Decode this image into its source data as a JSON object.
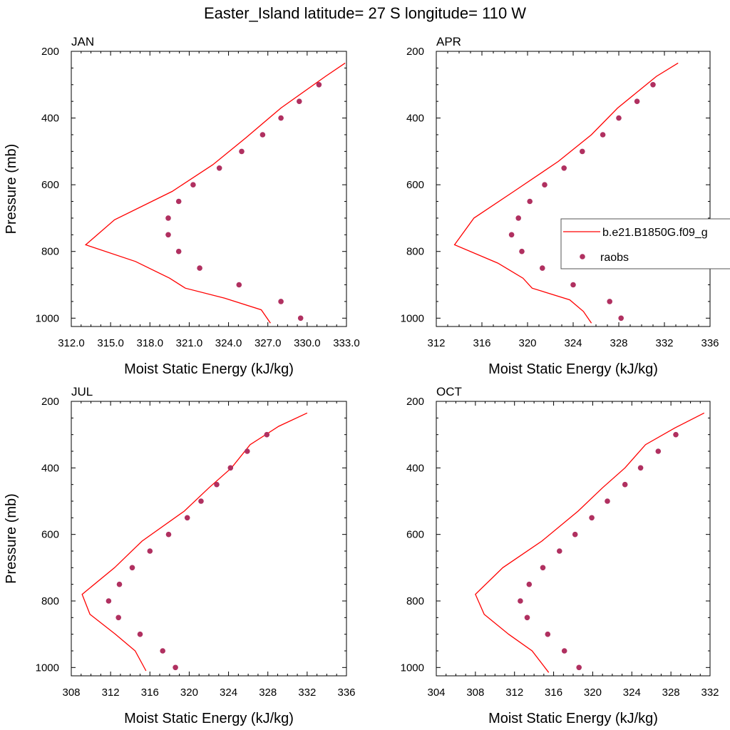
{
  "figure_title": "Easter_Island  latitude= 27 S longitude= 110 W",
  "legend": {
    "model_label": "b.e21.B1850G.f09_g",
    "obs_label": "raobs"
  },
  "colors": {
    "model_line": "#ff0000",
    "obs_marker": "#b03060"
  },
  "chart_data": [
    {
      "type": "line",
      "panel_label": "JAN",
      "xlabel": "Moist Static Energy (kJ/kg)",
      "ylabel": "Pressure (mb)",
      "xlim": [
        312,
        333
      ],
      "ylim": [
        1025,
        200
      ],
      "xticks": [
        312,
        315,
        318,
        321,
        324,
        327,
        330,
        333
      ],
      "xtick_labels": [
        "312.0",
        "315.0",
        "318.0",
        "321.0",
        "324.0",
        "327.0",
        "330.0",
        "333.0"
      ],
      "yticks": [
        200,
        400,
        600,
        800,
        1000
      ],
      "ytick_labels": [
        "200",
        "400",
        "600",
        "800",
        "1000"
      ],
      "series": [
        {
          "name": "b.e21.B1850G.f09_g",
          "kind": "line",
          "x": [
            332.9,
            331.4,
            328.0,
            325.3,
            322.8,
            319.7,
            315.3,
            313.1,
            316.9,
            319.5,
            320.7,
            323.7,
            326.5,
            327.2
          ],
          "y": [
            235,
            275,
            370,
            460,
            540,
            620,
            705,
            780,
            830,
            880,
            910,
            940,
            975,
            1015
          ]
        },
        {
          "name": "raobs",
          "kind": "scatter",
          "x": [
            330.9,
            329.4,
            328.0,
            326.6,
            325.0,
            323.3,
            321.3,
            320.2,
            319.4,
            319.4,
            320.2,
            321.8,
            324.8,
            328.0,
            329.5
          ],
          "y": [
            300,
            350,
            400,
            450,
            500,
            550,
            600,
            650,
            700,
            750,
            800,
            850,
            900,
            950,
            1000
          ]
        }
      ]
    },
    {
      "type": "line",
      "panel_label": "APR",
      "xlabel": "Moist Static Energy (kJ/kg)",
      "ylabel": "Pressure (mb)",
      "xlim": [
        312,
        336
      ],
      "ylim": [
        1025,
        200
      ],
      "xticks": [
        312,
        316,
        320,
        324,
        328,
        332,
        336
      ],
      "xtick_labels": [
        "312",
        "316",
        "320",
        "324",
        "328",
        "332",
        "336"
      ],
      "yticks": [
        200,
        400,
        600,
        800,
        1000
      ],
      "ytick_labels": [
        "200",
        "400",
        "600",
        "800",
        "1000"
      ],
      "series": [
        {
          "name": "b.e21.B1850G.f09_g",
          "kind": "line",
          "x": [
            333.2,
            331.3,
            327.9,
            325.6,
            322.7,
            318.8,
            315.3,
            313.6,
            317.4,
            319.6,
            320.4,
            323.7,
            324.9,
            325.6
          ],
          "y": [
            235,
            275,
            370,
            450,
            530,
            620,
            700,
            780,
            835,
            880,
            910,
            945,
            980,
            1015
          ]
        },
        {
          "name": "raobs",
          "kind": "scatter",
          "x": [
            331.0,
            329.6,
            328.0,
            326.6,
            324.8,
            323.2,
            321.5,
            320.2,
            319.2,
            318.6,
            319.5,
            321.3,
            324.0,
            327.2,
            328.2
          ],
          "y": [
            300,
            350,
            400,
            450,
            500,
            550,
            600,
            650,
            700,
            750,
            800,
            850,
            900,
            950,
            1000
          ]
        }
      ]
    },
    {
      "type": "line",
      "panel_label": "JUL",
      "xlabel": "Moist Static Energy (kJ/kg)",
      "ylabel": "Pressure (mb)",
      "xlim": [
        308,
        336
      ],
      "ylim": [
        1025,
        200
      ],
      "xticks": [
        308,
        312,
        316,
        320,
        324,
        328,
        332,
        336
      ],
      "xtick_labels": [
        "308",
        "312",
        "316",
        "320",
        "324",
        "328",
        "332",
        "336"
      ],
      "yticks": [
        200,
        400,
        600,
        800,
        1000
      ],
      "ytick_labels": [
        "200",
        "400",
        "600",
        "800",
        "1000"
      ],
      "series": [
        {
          "name": "b.e21.B1850G.f09_g",
          "kind": "line",
          "x": [
            332.0,
            329.1,
            326.2,
            324.3,
            322.0,
            319.5,
            315.2,
            312.4,
            309.1,
            309.9,
            312.5,
            314.5,
            315.6
          ],
          "y": [
            235,
            275,
            330,
            400,
            460,
            530,
            620,
            700,
            780,
            840,
            900,
            950,
            1010
          ]
        },
        {
          "name": "raobs",
          "kind": "scatter",
          "x": [
            327.9,
            325.9,
            324.2,
            322.8,
            321.2,
            319.8,
            317.9,
            316.0,
            314.2,
            312.9,
            311.8,
            312.8,
            315.0,
            317.3,
            318.6
          ],
          "y": [
            300,
            350,
            400,
            450,
            500,
            550,
            600,
            650,
            700,
            750,
            800,
            850,
            900,
            950,
            1000
          ]
        }
      ]
    },
    {
      "type": "line",
      "panel_label": "OCT",
      "xlabel": "Moist Static Energy (kJ/kg)",
      "ylabel": "Pressure (mb)",
      "xlim": [
        304,
        332
      ],
      "ylim": [
        1025,
        200
      ],
      "xticks": [
        304,
        308,
        312,
        316,
        320,
        324,
        328,
        332
      ],
      "xtick_labels": [
        "304",
        "308",
        "312",
        "316",
        "320",
        "324",
        "328",
        "332"
      ],
      "yticks": [
        200,
        400,
        600,
        800,
        1000
      ],
      "ytick_labels": [
        "200",
        "400",
        "600",
        "800",
        "1000"
      ],
      "series": [
        {
          "name": "b.e21.B1850G.f09_g",
          "kind": "line",
          "x": [
            331.4,
            328.4,
            325.4,
            323.3,
            321.0,
            318.5,
            314.8,
            310.8,
            308.0,
            308.9,
            311.4,
            313.8,
            315.5
          ],
          "y": [
            235,
            280,
            330,
            400,
            460,
            530,
            620,
            700,
            780,
            840,
            900,
            950,
            1015
          ]
        },
        {
          "name": "raobs",
          "kind": "scatter",
          "x": [
            328.5,
            326.7,
            324.9,
            323.3,
            321.5,
            319.9,
            318.2,
            316.6,
            314.9,
            313.5,
            312.6,
            313.3,
            315.4,
            317.1,
            318.6
          ],
          "y": [
            300,
            350,
            400,
            450,
            500,
            550,
            600,
            650,
            700,
            750,
            800,
            850,
            900,
            950,
            1000
          ]
        }
      ]
    }
  ]
}
